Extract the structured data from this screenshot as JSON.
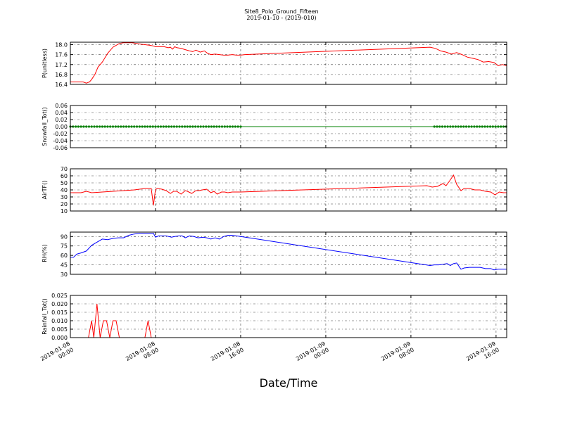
{
  "chart_data": {
    "type": "line",
    "title": "Site8_Polo_Ground_Fifteen",
    "subtitle": "2019-01-10 - (2019-010)",
    "xlabel": "Date/Time",
    "x_tick_labels": [
      [
        "2019-01-08",
        "00:00"
      ],
      [
        "2019-01-08",
        "08:00"
      ],
      [
        "2019-01-08",
        "16:00"
      ],
      [
        "2019-01-09",
        "00:00"
      ],
      [
        "2019-01-09",
        "08:00"
      ],
      [
        "2019-01-09",
        "16:00"
      ]
    ],
    "x_range_hours": [
      0,
      41
    ],
    "x_tick_hours": [
      0,
      8,
      16,
      24,
      32,
      40
    ],
    "grid": true,
    "panels": [
      {
        "ylabel": "P(unitless)",
        "color": "#ff0000",
        "ylim": [
          16.4,
          18.1
        ],
        "yticks": [
          "18.0",
          "17.6",
          "17.2",
          "16.8",
          "16.4"
        ],
        "ytick_values": [
          18.0,
          17.6,
          17.2,
          16.8,
          16.4
        ],
        "series": [
          {
            "x": [
              0,
              1.2,
              1.5,
              1.8,
              2.0,
              2.3,
              2.6,
              3.0,
              3.5,
              4.0,
              4.6,
              5.0,
              5.4,
              5.8,
              6.2,
              6.6,
              7.0,
              7.4,
              7.8,
              8.0,
              8.4,
              8.8,
              9.2,
              9.4,
              9.6,
              9.8,
              10.0,
              10.4,
              10.8,
              11.2,
              11.5,
              11.8,
              12.2,
              12.6,
              12.9,
              13.2,
              13.6,
              14.0,
              14.4,
              14.8,
              15.2,
              15.6,
              16.0,
              16.4,
              33.8,
              34.3,
              34.8,
              35.3,
              35.8,
              36.3,
              36.8,
              37.3,
              37.8,
              38.3,
              38.8,
              39.3,
              39.8,
              40.2,
              40.6,
              41.0
            ],
            "y": [
              16.5,
              16.5,
              16.45,
              16.5,
              16.6,
              16.8,
              17.1,
              17.3,
              17.65,
              17.9,
              18.05,
              18.08,
              18.08,
              18.08,
              18.05,
              18.02,
              18.0,
              17.98,
              17.95,
              17.92,
              17.92,
              17.92,
              17.88,
              17.9,
              17.82,
              17.92,
              17.88,
              17.85,
              17.8,
              17.75,
              17.72,
              17.78,
              17.7,
              17.75,
              17.65,
              17.6,
              17.62,
              17.6,
              17.58,
              17.58,
              17.6,
              17.58,
              17.58,
              17.6,
              17.9,
              17.85,
              17.75,
              17.7,
              17.62,
              17.68,
              17.6,
              17.5,
              17.45,
              17.4,
              17.3,
              17.32,
              17.28,
              17.15,
              17.2,
              17.15
            ]
          }
        ]
      },
      {
        "ylabel": "Snowfall_Tot()",
        "color": "#008000",
        "ylim": [
          -0.06,
          0.06
        ],
        "yticks": [
          "0.06",
          "0.04",
          "0.02",
          "0.00",
          "-0.02",
          "-0.04",
          "-0.06"
        ],
        "ytick_values": [
          0.06,
          0.04,
          0.02,
          0.0,
          -0.02,
          -0.04,
          -0.06
        ],
        "markers": true,
        "marker_ranges_hours": [
          [
            0,
            16.2
          ],
          [
            34.2,
            41.0
          ]
        ],
        "series": [
          {
            "x": [
              0,
              41
            ],
            "y": [
              0.0,
              0.0
            ]
          }
        ]
      },
      {
        "ylabel": "AirTF()",
        "color": "#ff0000",
        "ylim": [
          10,
          70
        ],
        "yticks": [
          "70",
          "60",
          "50",
          "40",
          "30",
          "20",
          "10"
        ],
        "ytick_values": [
          70,
          60,
          50,
          40,
          30,
          20,
          10
        ],
        "series": [
          {
            "x": [
              0,
              1.0,
              1.5,
              2.0,
              3.0,
              4.0,
              5.0,
              6.0,
              7.0,
              7.6,
              7.8,
              8.0,
              8.2,
              8.6,
              9.0,
              9.4,
              9.7,
              10.0,
              10.4,
              10.8,
              11.0,
              11.4,
              11.8,
              12.1,
              12.4,
              12.8,
              13.2,
              13.5,
              13.8,
              14.2,
              14.5,
              14.8,
              15.2,
              15.6,
              16.0,
              33.5,
              34.0,
              34.5,
              35.0,
              35.3,
              35.6,
              36.0,
              36.3,
              36.7,
              37.0,
              37.5,
              38.0,
              38.5,
              39.0,
              39.5,
              39.9,
              40.3,
              40.7,
              41.0
            ],
            "y": [
              36,
              36,
              38,
              36,
              37,
              38,
              39,
              40,
              42,
              42,
              18,
              41,
              42,
              41,
              39,
              35,
              38,
              38,
              34,
              39,
              38,
              35,
              39,
              39,
              40,
              41,
              36,
              38,
              34,
              37,
              37,
              36,
              37,
              37,
              37,
              46,
              44,
              45,
              49,
              46,
              52,
              61,
              48,
              39,
              42,
              42,
              40,
              40,
              38,
              37,
              33,
              37,
              36,
              36
            ]
          }
        ]
      },
      {
        "ylabel": "RH(%)",
        "color": "#0000ff",
        "ylim": [
          30,
          97
        ],
        "yticks": [
          "90",
          "75",
          "60",
          "45",
          "30"
        ],
        "ytick_values": [
          90,
          75,
          60,
          45,
          30
        ],
        "series": [
          {
            "x": [
              0,
              0.3,
              0.6,
              1.0,
              1.5,
              2.0,
              2.5,
              3.0,
              3.5,
              4.0,
              4.5,
              5.0,
              5.5,
              6.0,
              6.5,
              7.0,
              7.5,
              7.8,
              8.0,
              8.3,
              8.6,
              9.0,
              9.5,
              9.8,
              10.2,
              10.5,
              10.8,
              11.2,
              11.6,
              12.0,
              12.5,
              12.8,
              13.2,
              13.6,
              14.0,
              14.4,
              14.8,
              15.2,
              15.6,
              16.0,
              33.8,
              34.2,
              34.6,
              35.0,
              35.4,
              35.7,
              36.0,
              36.3,
              36.7,
              37.0,
              37.5,
              38.0,
              38.5,
              39.0,
              39.5,
              39.8,
              40.2,
              40.6,
              41.0
            ],
            "y": [
              57,
              57,
              62,
              64,
              67,
              76,
              81,
              86,
              85,
              87,
              88,
              88,
              92,
              94,
              95,
              95,
              95,
              95,
              89,
              91,
              91,
              91,
              89,
              90,
              91,
              91,
              88,
              91,
              90,
              88,
              89,
              88,
              86,
              88,
              86,
              90,
              92,
              92,
              91,
              90,
              44,
              45,
              45,
              46,
              47,
              44,
              47,
              48,
              38,
              40,
              41,
              41,
              41,
              39,
              39,
              37,
              38,
              38,
              38
            ]
          }
        ]
      },
      {
        "ylabel": "Rainfall_Tot()",
        "color": "#ff0000",
        "ylim": [
          0.0,
          0.025
        ],
        "yticks": [
          "0.025",
          "0.020",
          "0.015",
          "0.010",
          "0.005",
          "0.000"
        ],
        "ytick_values": [
          0.025,
          0.02,
          0.015,
          0.01,
          0.005,
          0.0
        ],
        "series": [
          {
            "x": [
              0,
              1.7,
              2.0,
              2.2,
              2.5,
              2.8,
              3.1,
              3.4,
              3.7,
              4.0,
              4.3,
              4.6,
              7.0,
              7.3,
              7.6,
              41.0
            ],
            "y": [
              0,
              0,
              0.01,
              0,
              0.02,
              0,
              0.01,
              0.01,
              0,
              0.01,
              0.01,
              0,
              0,
              0.01,
              0,
              0
            ]
          }
        ]
      }
    ]
  }
}
